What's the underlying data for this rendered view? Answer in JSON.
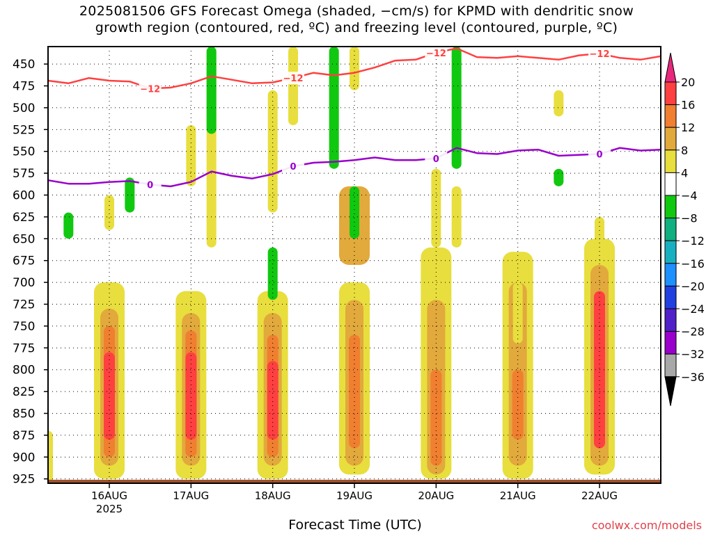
{
  "title": {
    "line1": "2025081506 GFS Forecast Omega (shaded, −cm/s) for KPMD with dendritic snow",
    "line2": "growth region (contoured, red, ºC) and freezing level (contoured, purple, ºC)"
  },
  "credit": "coolwx.com/models",
  "colors": {
    "dgz_contour": "#ff4040",
    "freezing_contour": "#9900cc",
    "ground": "#a0522d"
  },
  "chart_data": {
    "type": "heatmap",
    "xlabel": "Forecast Time (UTC)",
    "ylabel": "",
    "x_ticks": [
      "16AUG",
      "17AUG",
      "18AUG",
      "19AUG",
      "20AUG",
      "21AUG",
      "22AUG"
    ],
    "x_year_label": "2025",
    "xlim": [
      "2025-08-15 06:00",
      "2025-08-22 18:00"
    ],
    "y_ticks": [
      450,
      475,
      500,
      525,
      550,
      575,
      600,
      625,
      650,
      675,
      700,
      725,
      750,
      775,
      800,
      825,
      850,
      875,
      900,
      925
    ],
    "ylim": [
      930,
      430
    ],
    "grid": true,
    "colorbar": {
      "labels": [
        "20",
        "16",
        "12",
        "8",
        "4",
        "−4",
        "−8",
        "−12",
        "−16",
        "−20",
        "−24",
        "−28",
        "−32",
        "−36"
      ],
      "bands": [
        {
          "from": 16,
          "to": 20,
          "color": "#ff4040"
        },
        {
          "from": 12,
          "to": 16,
          "color": "#f07f30"
        },
        {
          "from": 8,
          "to": 12,
          "color": "#e2a93c"
        },
        {
          "from": 4,
          "to": 8,
          "color": "#e8de3e"
        },
        {
          "from": -4,
          "to": 4,
          "color": "#ffffff"
        },
        {
          "from": -8,
          "to": -4,
          "color": "#10c810"
        },
        {
          "from": -12,
          "to": -8,
          "color": "#10b080"
        },
        {
          "from": -16,
          "to": -12,
          "color": "#18b0c0"
        },
        {
          "from": -20,
          "to": -16,
          "color": "#1e90ff"
        },
        {
          "from": -24,
          "to": -20,
          "color": "#2040e0"
        },
        {
          "from": -28,
          "to": -24,
          "color": "#5020c8"
        },
        {
          "from": -32,
          "to": -28,
          "color": "#9900cc"
        },
        {
          "from": -36,
          "to": -32,
          "color": "#a8a8a8"
        }
      ],
      "top_arrow_color": "#e8287c",
      "bottom_arrow_color": "#000000"
    },
    "contours": [
      {
        "name": "dendritic snow growth region",
        "label": "−12",
        "color": "#ff4040",
        "times": [
          "2025-08-15 06:00",
          "2025-08-15 12:00",
          "2025-08-15 18:00",
          "2025-08-16 00:00",
          "2025-08-16 06:00",
          "2025-08-16 12:00",
          "2025-08-16 18:00",
          "2025-08-17 00:00",
          "2025-08-17 06:00",
          "2025-08-17 12:00",
          "2025-08-17 18:00",
          "2025-08-18 00:00",
          "2025-08-18 06:00",
          "2025-08-18 12:00",
          "2025-08-18 18:00",
          "2025-08-19 00:00",
          "2025-08-19 06:00",
          "2025-08-19 12:00",
          "2025-08-19 18:00",
          "2025-08-20 00:00",
          "2025-08-20 06:00",
          "2025-08-20 12:00",
          "2025-08-20 18:00",
          "2025-08-21 00:00",
          "2025-08-21 06:00",
          "2025-08-21 12:00",
          "2025-08-21 18:00",
          "2025-08-22 00:00",
          "2025-08-22 06:00",
          "2025-08-22 12:00",
          "2025-08-22 18:00"
        ],
        "pressure": [
          469,
          472,
          466,
          469,
          470,
          478,
          477,
          472,
          464,
          468,
          472,
          471,
          466,
          460,
          463,
          460,
          454,
          446,
          445,
          437,
          432,
          442,
          443,
          441,
          443,
          445,
          440,
          438,
          443,
          445,
          441
        ]
      },
      {
        "name": "freezing level",
        "label": "0",
        "color": "#9900cc",
        "times": [
          "2025-08-15 06:00",
          "2025-08-15 12:00",
          "2025-08-15 18:00",
          "2025-08-16 00:00",
          "2025-08-16 06:00",
          "2025-08-16 12:00",
          "2025-08-16 18:00",
          "2025-08-17 00:00",
          "2025-08-17 06:00",
          "2025-08-17 12:00",
          "2025-08-17 18:00",
          "2025-08-18 00:00",
          "2025-08-18 06:00",
          "2025-08-18 12:00",
          "2025-08-18 18:00",
          "2025-08-19 00:00",
          "2025-08-19 06:00",
          "2025-08-19 12:00",
          "2025-08-19 18:00",
          "2025-08-20 00:00",
          "2025-08-20 06:00",
          "2025-08-20 12:00",
          "2025-08-20 18:00",
          "2025-08-21 00:00",
          "2025-08-21 06:00",
          "2025-08-21 12:00",
          "2025-08-21 18:00",
          "2025-08-22 00:00",
          "2025-08-22 06:00",
          "2025-08-22 12:00",
          "2025-08-22 18:00"
        ],
        "pressure": [
          583,
          587,
          587,
          585,
          584,
          588,
          590,
          585,
          573,
          578,
          581,
          576,
          567,
          563,
          562,
          560,
          557,
          560,
          560,
          558,
          546,
          552,
          553,
          549,
          548,
          555,
          554,
          553,
          546,
          549,
          548
        ]
      }
    ],
    "omega_cells": [
      {
        "time": "2025-08-15 06:00",
        "p_top": 870,
        "p_bottom": 930,
        "value": 5
      },
      {
        "time": "2025-08-16 00:00",
        "p_top": 700,
        "p_bottom": 925,
        "value": 6
      },
      {
        "time": "2025-08-16 00:00",
        "p_top": 730,
        "p_bottom": 910,
        "value": 10
      },
      {
        "time": "2025-08-16 00:00",
        "p_top": 750,
        "p_bottom": 900,
        "value": 14
      },
      {
        "time": "2025-08-16 00:00",
        "p_top": 780,
        "p_bottom": 880,
        "value": 18
      },
      {
        "time": "2025-08-17 00:00",
        "p_top": 710,
        "p_bottom": 925,
        "value": 6
      },
      {
        "time": "2025-08-17 00:00",
        "p_top": 735,
        "p_bottom": 910,
        "value": 10
      },
      {
        "time": "2025-08-17 00:00",
        "p_top": 755,
        "p_bottom": 900,
        "value": 14
      },
      {
        "time": "2025-08-17 00:00",
        "p_top": 780,
        "p_bottom": 880,
        "value": 18
      },
      {
        "time": "2025-08-18 00:00",
        "p_top": 710,
        "p_bottom": 925,
        "value": 6
      },
      {
        "time": "2025-08-18 00:00",
        "p_top": 735,
        "p_bottom": 910,
        "value": 10
      },
      {
        "time": "2025-08-18 00:00",
        "p_top": 760,
        "p_bottom": 900,
        "value": 14
      },
      {
        "time": "2025-08-18 00:00",
        "p_top": 790,
        "p_bottom": 880,
        "value": 18
      },
      {
        "time": "2025-08-19 00:00",
        "p_top": 700,
        "p_bottom": 920,
        "value": 6
      },
      {
        "time": "2025-08-19 00:00",
        "p_top": 720,
        "p_bottom": 910,
        "value": 10
      },
      {
        "time": "2025-08-19 00:00",
        "p_top": 760,
        "p_bottom": 890,
        "value": 14
      },
      {
        "time": "2025-08-20 00:00",
        "p_top": 660,
        "p_bottom": 925,
        "value": 6
      },
      {
        "time": "2025-08-20 00:00",
        "p_top": 720,
        "p_bottom": 920,
        "value": 10
      },
      {
        "time": "2025-08-20 00:00",
        "p_top": 800,
        "p_bottom": 910,
        "value": 14
      },
      {
        "time": "2025-08-21 00:00",
        "p_top": 665,
        "p_bottom": 925,
        "value": 6
      },
      {
        "time": "2025-08-21 00:00",
        "p_top": 700,
        "p_bottom": 910,
        "value": 10
      },
      {
        "time": "2025-08-21 00:00",
        "p_top": 800,
        "p_bottom": 880,
        "value": 14
      },
      {
        "time": "2025-08-22 00:00",
        "p_top": 650,
        "p_bottom": 920,
        "value": 6
      },
      {
        "time": "2025-08-22 00:00",
        "p_top": 680,
        "p_bottom": 910,
        "value": 10
      },
      {
        "time": "2025-08-22 00:00",
        "p_top": 710,
        "p_bottom": 890,
        "value": 18
      },
      {
        "time": "2025-08-16 00:00",
        "p_top": 600,
        "p_bottom": 640,
        "value": 5
      },
      {
        "time": "2025-08-17 00:00",
        "p_top": 520,
        "p_bottom": 590,
        "value": 5
      },
      {
        "time": "2025-08-17 06:00",
        "p_top": 430,
        "p_bottom": 660,
        "value": 5
      },
      {
        "time": "2025-08-18 00:00",
        "p_top": 480,
        "p_bottom": 620,
        "value": 5
      },
      {
        "time": "2025-08-18 06:00",
        "p_top": 430,
        "p_bottom": 520,
        "value": 5
      },
      {
        "time": "2025-08-19 00:00",
        "p_top": 590,
        "p_bottom": 680,
        "value": 8
      },
      {
        "time": "2025-08-19 00:00",
        "p_top": 430,
        "p_bottom": 480,
        "value": 5
      },
      {
        "time": "2025-08-20 00:00",
        "p_top": 570,
        "p_bottom": 660,
        "value": 5
      },
      {
        "time": "2025-08-20 06:00",
        "p_top": 590,
        "p_bottom": 660,
        "value": 5
      },
      {
        "time": "2025-08-21 00:00",
        "p_top": 700,
        "p_bottom": 770,
        "value": 5
      },
      {
        "time": "2025-08-21 12:00",
        "p_top": 480,
        "p_bottom": 510,
        "value": 5
      },
      {
        "time": "2025-08-22 00:00",
        "p_top": 625,
        "p_bottom": 660,
        "value": 5
      },
      {
        "time": "2025-08-17 06:00",
        "p_top": 430,
        "p_bottom": 530,
        "value": -6
      },
      {
        "time": "2025-08-18 00:00",
        "p_top": 660,
        "p_bottom": 720,
        "value": -6
      },
      {
        "time": "2025-08-18 18:00",
        "p_top": 430,
        "p_bottom": 570,
        "value": -6
      },
      {
        "time": "2025-08-19 00:00",
        "p_top": 590,
        "p_bottom": 650,
        "value": -6
      },
      {
        "time": "2025-08-20 06:00",
        "p_top": 430,
        "p_bottom": 570,
        "value": -6
      },
      {
        "time": "2025-08-16 06:00",
        "p_top": 580,
        "p_bottom": 620,
        "value": -6
      },
      {
        "time": "2025-08-15 12:00",
        "p_top": 620,
        "p_bottom": 650,
        "value": -6
      },
      {
        "time": "2025-08-21 12:00",
        "p_top": 570,
        "p_bottom": 590,
        "value": -6
      }
    ]
  }
}
